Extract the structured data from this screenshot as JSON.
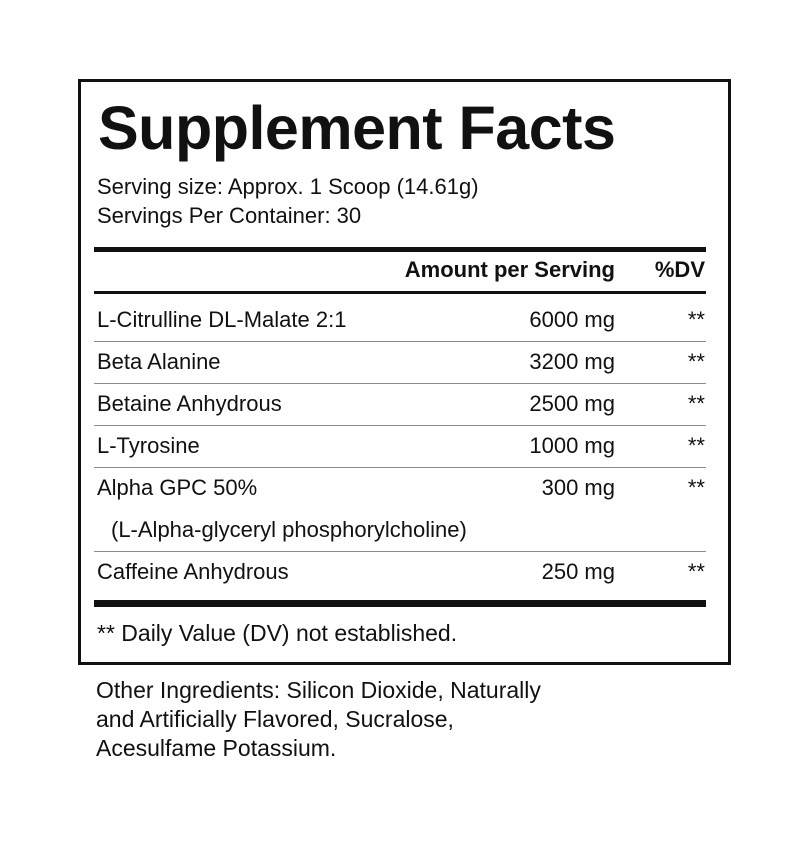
{
  "title": "Supplement Facts",
  "serving_size": "Serving size: Approx. 1 Scoop (14.61g)",
  "servings_per_container": "Servings Per Container: 30",
  "header": {
    "amount": "Amount per Serving",
    "dv": "%DV"
  },
  "rows": [
    {
      "name": "L-Citrulline DL-Malate 2:1",
      "amount": "6000 mg",
      "dv": "**"
    },
    {
      "name": "Beta Alanine",
      "amount": "3200 mg",
      "dv": "**"
    },
    {
      "name": "Betaine Anhydrous",
      "amount": "2500 mg",
      "dv": "**"
    },
    {
      "name": "L-Tyrosine",
      "amount": "1000 mg",
      "dv": "**"
    },
    {
      "name": "Alpha GPC 50%",
      "amount": "300 mg",
      "dv": "**",
      "sub": "(L-Alpha-glyceryl phosphorylcholine)"
    },
    {
      "name": "Caffeine Anhydrous",
      "amount": "250 mg",
      "dv": "**"
    }
  ],
  "footnote": "** Daily Value (DV) not established.",
  "other_ingredients": [
    "Other Ingredients: Silicon Dioxide, Naturally",
    "and Artificially Flavored, Sucralose,",
    "Acesulfame Potassium."
  ]
}
